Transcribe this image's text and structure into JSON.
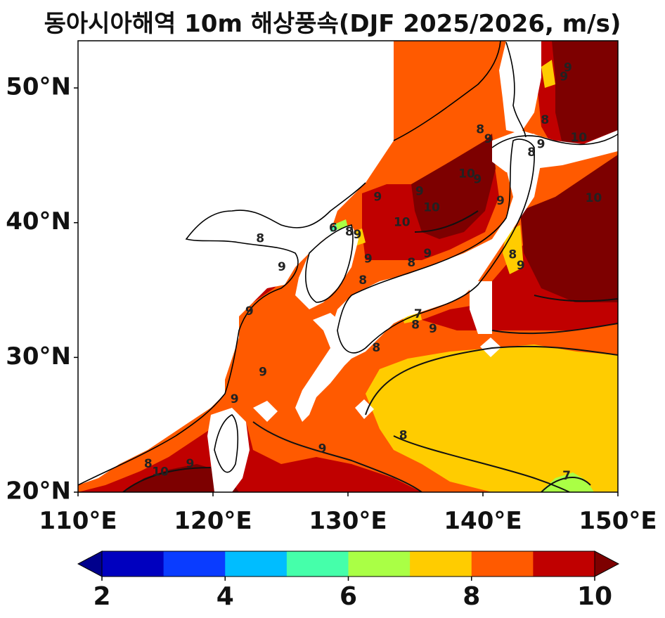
{
  "title": "동아시아해역 10m 해상풍속(DJF 2025/2026, m/s)",
  "map": {
    "lon_range": [
      110,
      150
    ],
    "lat_range": [
      20,
      53.5
    ],
    "x_ticks": [
      "110°E",
      "120°E",
      "130°E",
      "140°E",
      "150°E"
    ],
    "y_ticks": [
      "20°N",
      "30°N",
      "40°N",
      "50°N"
    ],
    "contour_labels": [
      {
        "text": "7",
        "lon": 146.2,
        "lat": 21.2
      },
      {
        "text": "8",
        "lon": 134.1,
        "lat": 24.2
      },
      {
        "text": "9",
        "lon": 128.1,
        "lat": 23.2
      },
      {
        "text": "9",
        "lon": 118.3,
        "lat": 22.1
      },
      {
        "text": "10",
        "lon": 116.1,
        "lat": 21.5
      },
      {
        "text": "8",
        "lon": 115.2,
        "lat": 22.1
      },
      {
        "text": "9",
        "lon": 121.6,
        "lat": 26.9
      },
      {
        "text": "9",
        "lon": 123.7,
        "lat": 28.9
      },
      {
        "text": "9",
        "lon": 122.7,
        "lat": 33.4
      },
      {
        "text": "9",
        "lon": 125.1,
        "lat": 36.7
      },
      {
        "text": "8",
        "lon": 123.5,
        "lat": 38.8
      },
      {
        "text": "8",
        "lon": 132.1,
        "lat": 30.7
      },
      {
        "text": "8",
        "lon": 135.0,
        "lat": 32.4
      },
      {
        "text": "9",
        "lon": 136.3,
        "lat": 32.1
      },
      {
        "text": "7",
        "lon": 135.2,
        "lat": 33.2
      },
      {
        "text": "8",
        "lon": 131.1,
        "lat": 35.7
      },
      {
        "text": "9",
        "lon": 131.5,
        "lat": 37.3
      },
      {
        "text": "8",
        "lon": 134.7,
        "lat": 37.0
      },
      {
        "text": "9",
        "lon": 135.9,
        "lat": 37.7
      },
      {
        "text": "6",
        "lon": 128.9,
        "lat": 39.6
      },
      {
        "text": "8",
        "lon": 130.1,
        "lat": 39.3
      },
      {
        "text": "9",
        "lon": 130.7,
        "lat": 39.1
      },
      {
        "text": "9",
        "lon": 132.2,
        "lat": 41.9
      },
      {
        "text": "9",
        "lon": 135.3,
        "lat": 42.3
      },
      {
        "text": "10",
        "lon": 134.0,
        "lat": 40.0
      },
      {
        "text": "10",
        "lon": 136.2,
        "lat": 41.1
      },
      {
        "text": "10",
        "lon": 138.8,
        "lat": 43.6
      },
      {
        "text": "9",
        "lon": 139.6,
        "lat": 43.2
      },
      {
        "text": "9",
        "lon": 141.3,
        "lat": 41.6
      },
      {
        "text": "8",
        "lon": 139.8,
        "lat": 46.9
      },
      {
        "text": "9",
        "lon": 140.4,
        "lat": 46.2
      },
      {
        "text": "8",
        "lon": 143.6,
        "lat": 45.2
      },
      {
        "text": "9",
        "lon": 144.3,
        "lat": 45.8
      },
      {
        "text": "8",
        "lon": 144.6,
        "lat": 47.6
      },
      {
        "text": "10",
        "lon": 147.1,
        "lat": 46.3
      },
      {
        "text": "9",
        "lon": 146.3,
        "lat": 51.5
      },
      {
        "text": "9",
        "lon": 146.0,
        "lat": 50.8
      },
      {
        "text": "10",
        "lon": 148.2,
        "lat": 41.8
      },
      {
        "text": "8",
        "lon": 142.2,
        "lat": 37.6
      },
      {
        "text": "9",
        "lon": 142.8,
        "lat": 36.8
      }
    ]
  },
  "colorbar": {
    "tick_labels": [
      "2",
      "4",
      "6",
      "8",
      "10"
    ],
    "levels": [
      2,
      3,
      4,
      5,
      6,
      7,
      8,
      9,
      10
    ],
    "colors": [
      "#0000bf",
      "#0a3cff",
      "#00bdff",
      "#45ffaa",
      "#aaff45",
      "#ffcc00",
      "#ff5a00",
      "#c00000"
    ],
    "under_color": "#00008c",
    "over_color": "#7d0000"
  },
  "colors": {
    "fill_7_8": "#ffcc00",
    "fill_8_9": "#ff5a00",
    "fill_9_10": "#c00000",
    "fill_over_10": "#7d0000",
    "fill_6_7": "#aaff45",
    "fill_5_6": "#45ffaa"
  }
}
